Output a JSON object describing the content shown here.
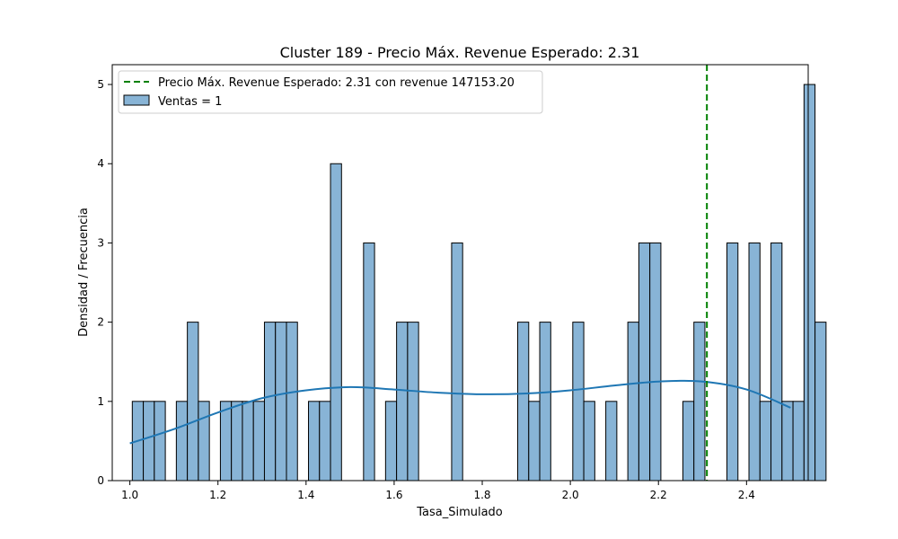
{
  "chart_data": {
    "type": "bar",
    "title": "Cluster 189 - Precio Máx. Revenue Esperado: 2.31",
    "xlabel": "Tasa_Simulado",
    "ylabel": "Densidad / Frecuencia",
    "xlim": [
      0.96,
      2.54
    ],
    "ylim": [
      0,
      5.25
    ],
    "xticks": [
      "1.0",
      "1.2",
      "1.4",
      "1.6",
      "1.8",
      "2.0",
      "2.2",
      "2.4"
    ],
    "yticks": [
      "0",
      "1",
      "2",
      "3",
      "4",
      "5"
    ],
    "bin_start": 1.0055,
    "bin_width": 0.025,
    "counts": [
      1,
      1,
      1,
      0,
      1,
      2,
      1,
      0,
      1,
      1,
      1,
      1,
      2,
      2,
      2,
      0,
      1,
      1,
      4,
      0,
      0,
      3,
      0,
      1,
      2,
      2,
      0,
      0,
      0,
      3,
      0,
      0,
      0,
      0,
      0,
      2,
      1,
      2,
      0,
      0,
      2,
      1,
      0,
      1,
      0,
      2,
      3,
      3,
      0,
      0,
      1,
      2,
      0,
      0,
      3,
      0,
      3,
      1,
      3,
      1,
      1,
      5,
      2
    ],
    "kde": [
      [
        1.0,
        0.47
      ],
      [
        1.1,
        0.65
      ],
      [
        1.2,
        0.86
      ],
      [
        1.3,
        1.04
      ],
      [
        1.4,
        1.14
      ],
      [
        1.5,
        1.18
      ],
      [
        1.6,
        1.15
      ],
      [
        1.7,
        1.11
      ],
      [
        1.8,
        1.09
      ],
      [
        1.9,
        1.1
      ],
      [
        2.0,
        1.14
      ],
      [
        2.1,
        1.2
      ],
      [
        2.2,
        1.25
      ],
      [
        2.3,
        1.25
      ],
      [
        2.4,
        1.15
      ],
      [
        2.5,
        0.92
      ]
    ],
    "vline_x": 2.31,
    "legend": {
      "position": "top-left",
      "entries": [
        {
          "label": "Precio Máx. Revenue Esperado: 2.31 con revenue 147153.20",
          "kind": "dashed-line",
          "color": "#008000"
        },
        {
          "label": "Ventas = 1",
          "kind": "patch",
          "color": "#88b4d6"
        }
      ]
    },
    "colors": {
      "bar_fill": "#88b4d6",
      "bar_edge": "#000000",
      "kde_line": "#1f77b4",
      "vline": "#008000"
    }
  }
}
